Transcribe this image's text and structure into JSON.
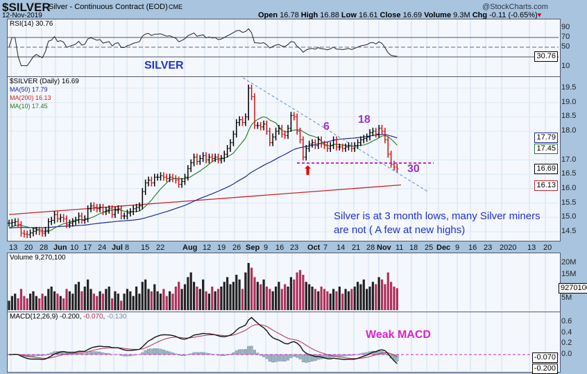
{
  "header": {
    "symbol": "$SILVER",
    "name": "Silver - Continuous Contract (EOD)",
    "exchange": "CME",
    "date": "12-Nov-2019",
    "brand": "@StockCharts.com",
    "open_label": "Open",
    "open": "16.78",
    "high_label": "High",
    "high": "16.88",
    "low_label": "Low",
    "low": "16.61",
    "close_label": "Close",
    "close": "16.69",
    "volume_label": "Volume",
    "volume": "9.3M",
    "chg_label": "Chg",
    "chg": "-0.11 (-0.65%)"
  },
  "colors": {
    "up": "#000000",
    "down": "#cc1111",
    "ma50": "#1a2a99",
    "ma200": "#cc2222",
    "ma10": "#1e7a1e",
    "volume_down": "#b0305a",
    "annotation": "#cc22cc",
    "text_blue": "#2233cc"
  },
  "chart_data": [
    {
      "type": "line",
      "panel": "rsi",
      "legend": "RSI(14) 30.76",
      "ticks": [
        90,
        70,
        50,
        10
      ],
      "last": "30.76",
      "ylim": [
        0,
        100
      ]
    },
    {
      "type": "ohlc",
      "panel": "price",
      "legend": "$SILVER (Daily) 16.69",
      "ylim": [
        14.2,
        19.9
      ],
      "ticks": [
        "19.5",
        "19.0",
        "18.5",
        "18.0",
        "17.0",
        "16.5",
        "16.0",
        "15.5",
        "15.0",
        "14.5"
      ],
      "overlays": [
        {
          "name": "MA(50) 17.79",
          "last": "17.79"
        },
        {
          "name": "MA(200) 16.13",
          "last": "16.13",
          "start": 15.1,
          "end": 16.13
        },
        {
          "name": "MA(10) 17.45",
          "last": "17.45"
        }
      ],
      "last": "16.69",
      "x_labels": [
        "13",
        "20",
        "28",
        "Jun",
        "10",
        "17",
        "24",
        "Jul",
        "8",
        "15",
        "22",
        "Aug",
        "12",
        "19",
        "26",
        "Sep",
        "9",
        "16",
        "23",
        "Oct",
        "7",
        "14",
        "21",
        "28",
        "Nov",
        "11",
        "18",
        "25",
        "Dec",
        "9",
        "16",
        "23",
        "2020",
        "13",
        "20"
      ],
      "closes": [
        14.8,
        14.82,
        14.85,
        14.75,
        14.45,
        14.42,
        14.4,
        14.46,
        14.52,
        14.55,
        14.5,
        14.45,
        14.55,
        14.85,
        14.9,
        15.1,
        14.95,
        15.0,
        14.95,
        14.75,
        14.8,
        14.85,
        14.9,
        15.05,
        14.9,
        14.95,
        15.3,
        15.4,
        15.35,
        15.3,
        15.35,
        15.2,
        15.25,
        15.3,
        15.1,
        15.25,
        15.3,
        15.05,
        15.05,
        15.15,
        15.2,
        15.3,
        15.35,
        15.4,
        15.9,
        16.2,
        16.3,
        16.2,
        16.4,
        16.4,
        16.45,
        16.4,
        16.35,
        16.4,
        16.35,
        16.3,
        16.15,
        16.25,
        16.4,
        16.7,
        16.9,
        17.1,
        16.95,
        17.05,
        17.15,
        17.0,
        17.1,
        17.05,
        17.1,
        17.0,
        17.05,
        17.2,
        17.4,
        17.6,
        17.9,
        18.3,
        18.4,
        18.3,
        18.5,
        19.5,
        19.2,
        18.2,
        18.2,
        18.15,
        18.25,
        18.0,
        17.6,
        17.8,
        18.0,
        18.1,
        17.9,
        17.85,
        18.1,
        18.55,
        18.5,
        18.0,
        17.7,
        17.1,
        17.4,
        17.55,
        17.6,
        17.5,
        17.7,
        17.55,
        17.5,
        17.4,
        17.5,
        17.7,
        17.45,
        17.45,
        17.4,
        17.45,
        17.5,
        17.4,
        17.5,
        17.6,
        17.7,
        17.75,
        17.8,
        17.95,
        18.0,
        17.9,
        18.1,
        18.0,
        17.7,
        17.2,
        16.85,
        16.75,
        16.69
      ],
      "annotations": {
        "title": "SILVER",
        "label_6": "6",
        "label_18": "18",
        "label_30": "30",
        "note": "Silver is at 3 month lows, many Silver miners are not ( A few at new highs)"
      }
    },
    {
      "type": "bar",
      "panel": "volume",
      "legend": "Volume 9,270,100",
      "ticks": [
        "20M",
        "15M",
        "5M"
      ],
      "last": "9270100",
      "values_millions": [
        4,
        6,
        7,
        5,
        9,
        6,
        5,
        7,
        8,
        6,
        5,
        7,
        6,
        9,
        10,
        8,
        7,
        6,
        5,
        9,
        8,
        7,
        11,
        12,
        8,
        10,
        13,
        9,
        7,
        6,
        8,
        7,
        9,
        10,
        5,
        8,
        7,
        4,
        7,
        9,
        8,
        6,
        10,
        7,
        12,
        13,
        9,
        8,
        11,
        8,
        7,
        9,
        6,
        8,
        7,
        10,
        12,
        9,
        11,
        14,
        16,
        12,
        10,
        9,
        13,
        8,
        7,
        10,
        8,
        9,
        10,
        12,
        14,
        11,
        12,
        15,
        13,
        9,
        16,
        20,
        18,
        14,
        12,
        11,
        13,
        10,
        9,
        8,
        10,
        12,
        9,
        11,
        10,
        14,
        13,
        16,
        17,
        15,
        12,
        11,
        10,
        9,
        8,
        10,
        9,
        8,
        7,
        9,
        8,
        10,
        7,
        9,
        8,
        9,
        10,
        12,
        11,
        13,
        9,
        10,
        12,
        11,
        14,
        13,
        11,
        16,
        12,
        10,
        9.3
      ]
    },
    {
      "type": "line",
      "panel": "macd",
      "legend": "MACD(12,26,9)",
      "macd": "-0.200",
      "signal": "-0.070",
      "hist": "-0.130",
      "ticks": [
        "0.6",
        "0.4",
        "0.2",
        "0.0"
      ],
      "last_signal": "-0.070",
      "last_macd": "-0.200",
      "annotation": "Weak MACD"
    }
  ]
}
